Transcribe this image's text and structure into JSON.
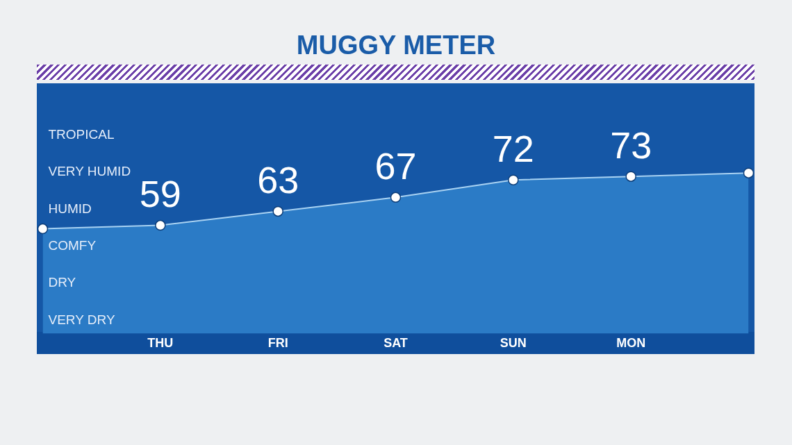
{
  "chart_data": {
    "type": "area",
    "title": "MUGGY METER",
    "categories": [
      null,
      "THU",
      "FRI",
      "SAT",
      "SUN",
      "MON",
      null
    ],
    "values": [
      58,
      59,
      63,
      67,
      72,
      73,
      74
    ],
    "value_labels": [
      null,
      "59",
      "63",
      "67",
      "72",
      "73",
      null
    ],
    "color": "#a9d2f2",
    "annotations": [
      "TROPICAL",
      "VERY HUMID",
      "HUMID",
      "COMFY",
      "DRY",
      "VERY DRY"
    ],
    "grid": false,
    "legend": false,
    "marker": "circle",
    "line_style": "solid"
  }
}
